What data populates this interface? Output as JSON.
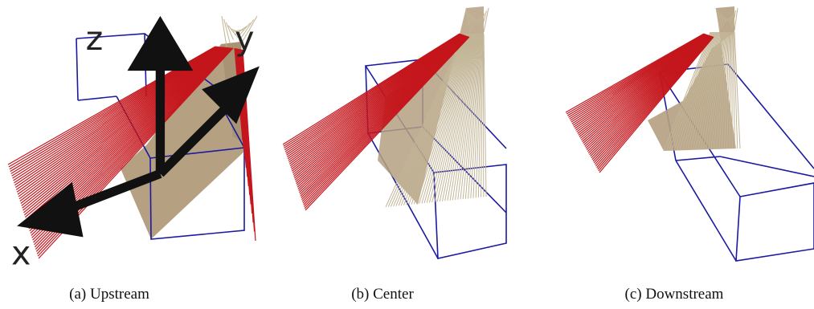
{
  "figure": {
    "axes_labels": {
      "z": "z",
      "y": "y",
      "x": "x"
    },
    "colors": {
      "wall": "#b5a081",
      "wire_tan": "#c2b596",
      "wire_red": "#c4161c",
      "box": "#1a1aa0"
    },
    "panels": [
      {
        "id": "a",
        "caption": "(a) Upstream"
      },
      {
        "id": "b",
        "caption": "(b) Center"
      },
      {
        "id": "c",
        "caption": "(c) Downstream"
      }
    ]
  }
}
